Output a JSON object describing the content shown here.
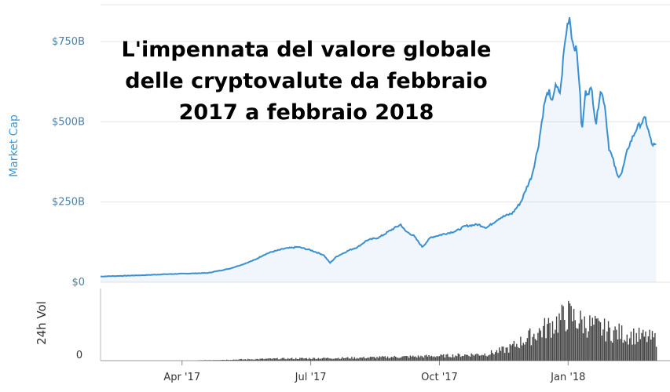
{
  "chart_data": {
    "type": "area",
    "title_lines": [
      "L'impennata del valore globale",
      "delle cryptovalute da febbraio",
      "2017 a febbraio 2018"
    ],
    "ylabel": "Market Cap",
    "volume_label": "24h Vol",
    "volume_zero_label": "0",
    "ylim": [
      0,
      850
    ],
    "y_ticks": [
      {
        "value": 0,
        "label": "$0"
      },
      {
        "value": 250,
        "label": "$250B"
      },
      {
        "value": 500,
        "label": "$500B"
      },
      {
        "value": 750,
        "label": "$750B"
      }
    ],
    "x_ticks": [
      {
        "month": 1.9,
        "label": "Apr '17"
      },
      {
        "month": 4.9,
        "label": "Jul '17"
      },
      {
        "month": 7.9,
        "label": "Oct '17"
      },
      {
        "month": 10.9,
        "label": "Jan '18"
      }
    ],
    "x_range_months": [
      0,
      13
    ],
    "grid": true,
    "colors": {
      "line": "#3a8fd0",
      "ylabel": "#3a9ad9",
      "tick": "#4a7fa5",
      "volume": "#444444",
      "grid": "#e6e6e6"
    },
    "market_cap": [
      [
        0.0,
        18
      ],
      [
        0.5,
        20
      ],
      [
        1.0,
        22
      ],
      [
        1.5,
        25
      ],
      [
        2.0,
        27
      ],
      [
        2.5,
        29
      ],
      [
        3.0,
        42
      ],
      [
        3.3,
        55
      ],
      [
        3.6,
        70
      ],
      [
        3.8,
        85
      ],
      [
        4.0,
        95
      ],
      [
        4.3,
        105
      ],
      [
        4.6,
        110
      ],
      [
        4.9,
        100
      ],
      [
        5.2,
        85
      ],
      [
        5.35,
        60
      ],
      [
        5.5,
        80
      ],
      [
        5.8,
        100
      ],
      [
        6.0,
        110
      ],
      [
        6.2,
        130
      ],
      [
        6.5,
        140
      ],
      [
        6.8,
        165
      ],
      [
        7.0,
        180
      ],
      [
        7.1,
        160
      ],
      [
        7.3,
        145
      ],
      [
        7.5,
        110
      ],
      [
        7.7,
        140
      ],
      [
        8.0,
        150
      ],
      [
        8.3,
        160
      ],
      [
        8.5,
        175
      ],
      [
        8.8,
        180
      ],
      [
        9.0,
        170
      ],
      [
        9.3,
        200
      ],
      [
        9.6,
        215
      ],
      [
        9.8,
        250
      ],
      [
        9.95,
        300
      ],
      [
        10.05,
        330
      ],
      [
        10.2,
        420
      ],
      [
        10.35,
        560
      ],
      [
        10.45,
        600
      ],
      [
        10.5,
        555
      ],
      [
        10.6,
        610
      ],
      [
        10.72,
        590
      ],
      [
        10.8,
        720
      ],
      [
        10.88,
        800
      ],
      [
        10.93,
        830
      ],
      [
        11.0,
        750
      ],
      [
        11.1,
        720
      ],
      [
        11.17,
        610
      ],
      [
        11.22,
        460
      ],
      [
        11.3,
        590
      ],
      [
        11.45,
        600
      ],
      [
        11.55,
        490
      ],
      [
        11.65,
        600
      ],
      [
        11.75,
        560
      ],
      [
        11.85,
        420
      ],
      [
        11.95,
        380
      ],
      [
        12.05,
        330
      ],
      [
        12.15,
        340
      ],
      [
        12.3,
        420
      ],
      [
        12.5,
        480
      ],
      [
        12.7,
        510
      ],
      [
        12.85,
        430
      ],
      [
        12.95,
        425
      ]
    ],
    "volume_envelope": [
      [
        2.0,
        0.0
      ],
      [
        3.0,
        0.02
      ],
      [
        4.0,
        0.04
      ],
      [
        5.0,
        0.05
      ],
      [
        6.0,
        0.06
      ],
      [
        7.0,
        0.08
      ],
      [
        8.0,
        0.1
      ],
      [
        9.0,
        0.14
      ],
      [
        9.5,
        0.25
      ],
      [
        10.0,
        0.5
      ],
      [
        10.5,
        0.75
      ],
      [
        10.9,
        0.95
      ],
      [
        11.2,
        0.8
      ],
      [
        11.7,
        0.65
      ],
      [
        12.2,
        0.55
      ],
      [
        12.95,
        0.45
      ]
    ]
  }
}
